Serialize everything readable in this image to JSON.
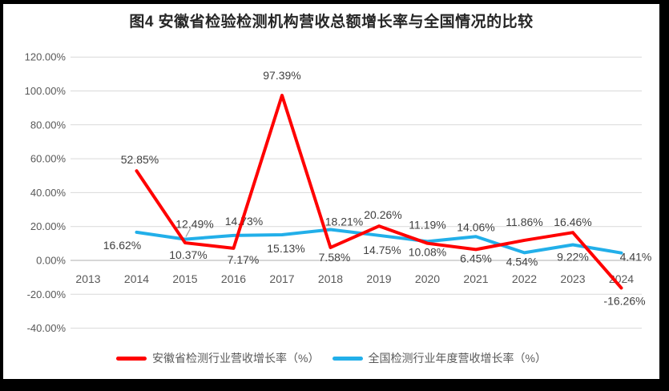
{
  "title": "图4 安徽省检验检测机构营收总额增长率与全国情况的比较",
  "chart_data": {
    "type": "line",
    "title": "图4 安徽省检验检测机构营收总额增长率与全国情况的比较",
    "categories": [
      "2013",
      "2014",
      "2015",
      "2016",
      "2017",
      "2018",
      "2019",
      "2020",
      "2021",
      "2022",
      "2023",
      "2024"
    ],
    "series": [
      {
        "name": "安徽省检测行业营收增长率（%）",
        "color": "#FF0000",
        "values": [
          null,
          52.85,
          10.37,
          7.17,
          97.39,
          7.58,
          20.26,
          10.08,
          6.45,
          11.86,
          16.46,
          -16.26
        ],
        "label_offsets": [
          null,
          [
            4,
            -9
          ],
          [
            4,
            20
          ],
          [
            12,
            19
          ],
          [
            0,
            -20
          ],
          [
            5,
            17
          ],
          [
            5,
            -9
          ],
          [
            0,
            16
          ],
          [
            0,
            16
          ],
          [
            0,
            -18
          ],
          [
            0,
            -8
          ],
          [
            4,
            21
          ]
        ]
      },
      {
        "name": "全国检测行业年度营收增长率（%）",
        "color": "#22AFE9",
        "values": [
          null,
          16.62,
          12.49,
          14.73,
          15.13,
          18.21,
          14.75,
          11.19,
          14.06,
          4.54,
          9.22,
          4.41
        ],
        "label_offsets": [
          null,
          [
            -18,
            21
          ],
          [
            12,
            -14
          ],
          [
            13,
            -13
          ],
          [
            5,
            22
          ],
          [
            17,
            -5
          ],
          [
            4,
            23
          ],
          [
            0,
            -16
          ],
          [
            0,
            -7
          ],
          [
            -3,
            16
          ],
          [
            0,
            20
          ],
          [
            18,
            10
          ]
        ],
        "leader_at": 2
      }
    ],
    "y_axis": {
      "ticks": [
        {
          "value": 120,
          "label": "120.00%"
        },
        {
          "value": 100,
          "label": "100.00%"
        },
        {
          "value": 80,
          "label": "80.00%"
        },
        {
          "value": 60,
          "label": "60.00%"
        },
        {
          "value": 40,
          "label": "40.00%"
        },
        {
          "value": 20,
          "label": "20.00%"
        },
        {
          "value": 0,
          "label": "0.00%"
        },
        {
          "value": -20,
          "label": "-20.00%"
        },
        {
          "value": -40,
          "label": "-40.00%"
        }
      ]
    },
    "ylim": [
      -40,
      120
    ],
    "label_format": "0.00%",
    "grid": "horizontal",
    "legend_position": "bottom",
    "colors": {
      "gridline": "#D9D9D9",
      "zero_axis": "#AFAFAF",
      "axis_text": "#595959",
      "data_label_text": "#404040",
      "leader_line": "#A6A6A6",
      "frame": "#000000",
      "background": "#FFFFFF"
    }
  }
}
